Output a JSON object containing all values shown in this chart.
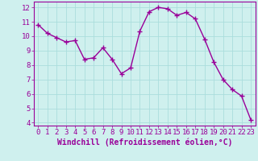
{
  "x": [
    0,
    1,
    2,
    3,
    4,
    5,
    6,
    7,
    8,
    9,
    10,
    11,
    12,
    13,
    14,
    15,
    16,
    17,
    18,
    19,
    20,
    21,
    22,
    23
  ],
  "y": [
    10.8,
    10.2,
    9.9,
    9.6,
    9.7,
    8.4,
    8.5,
    9.2,
    8.4,
    7.4,
    7.8,
    10.35,
    11.7,
    12.0,
    11.9,
    11.45,
    11.65,
    11.2,
    9.8,
    8.2,
    7.0,
    6.3,
    5.85,
    4.2
  ],
  "line_color": "#990099",
  "marker": "+",
  "marker_size": 4,
  "bg_color": "#cff0ee",
  "grid_color": "#aadddd",
  "xlabel": "Windchill (Refroidissement éolien,°C)",
  "ylim": [
    3.8,
    12.4
  ],
  "xlim": [
    -0.5,
    23.5
  ],
  "yticks": [
    4,
    5,
    6,
    7,
    8,
    9,
    10,
    11,
    12
  ],
  "xticks": [
    0,
    1,
    2,
    3,
    4,
    5,
    6,
    7,
    8,
    9,
    10,
    11,
    12,
    13,
    14,
    15,
    16,
    17,
    18,
    19,
    20,
    21,
    22,
    23
  ],
  "tick_label_fontsize": 6.5,
  "xlabel_fontsize": 7,
  "line_width": 1.0
}
